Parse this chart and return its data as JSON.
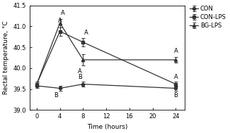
{
  "time": [
    0,
    4,
    8,
    24
  ],
  "CON": [
    39.58,
    39.52,
    39.62,
    39.52
  ],
  "CON_err": [
    0.06,
    0.06,
    0.06,
    0.06
  ],
  "CON_LPS": [
    39.62,
    40.88,
    40.62,
    39.62
  ],
  "CON_LPS_err": [
    0.06,
    0.1,
    0.1,
    0.06
  ],
  "BG_LPS": [
    39.62,
    41.08,
    40.2,
    40.2
  ],
  "BG_LPS_err": [
    0.06,
    0.1,
    0.13,
    0.06
  ],
  "xlabel": "Time (hours)",
  "ylabel": "Rectal temperature, °C",
  "ylim": [
    39.0,
    41.5
  ],
  "yticks": [
    39.0,
    39.5,
    40.0,
    40.5,
    41.0,
    41.5
  ],
  "xticks": [
    0,
    4,
    8,
    12,
    16,
    20,
    24
  ],
  "background": "#ffffff",
  "line_color": "#333333",
  "fontsize": 6.5,
  "legend_labels": [
    "CON",
    "CON-LPS",
    "BG-LPS"
  ]
}
